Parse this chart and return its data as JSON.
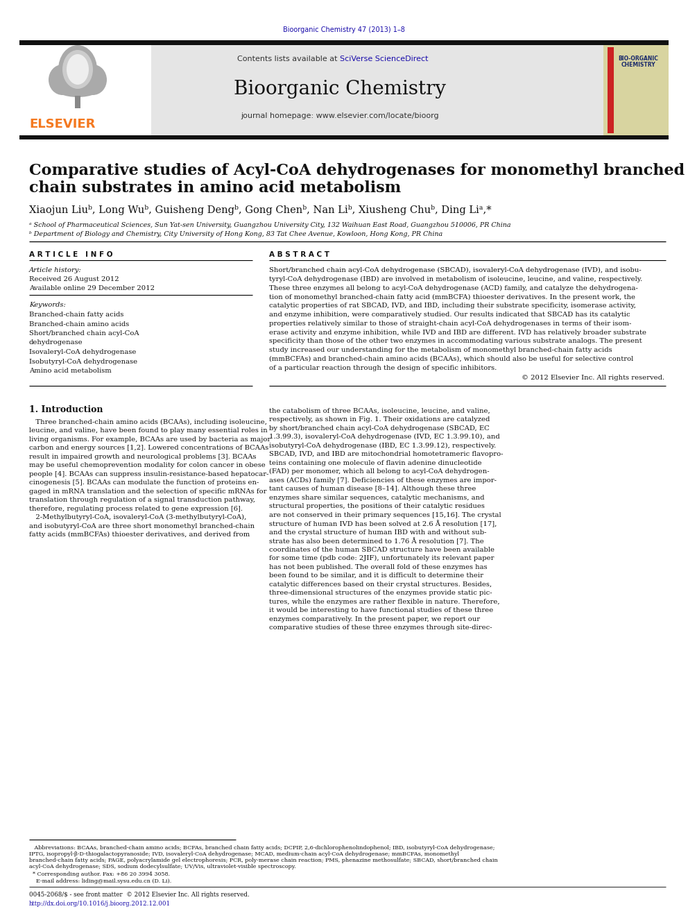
{
  "page_bg": "#ffffff",
  "header_citation": "Bioorganic Chemistry 47 (2013) 1–8",
  "header_citation_color": "#1a0dab",
  "journal_name": "Bioorganic Chemistry",
  "journal_homepage": "journal homepage: www.elsevier.com/locate/bioorg",
  "contents_text_pre": "Contents lists available at ",
  "contents_text_link": "SciVerse ScienceDirect",
  "article_title_line1": "Comparative studies of Acyl-CoA dehydrogenases for monomethyl branched",
  "article_title_line2": "chain substrates in amino acid metabolism",
  "authors_text": "Xiaojun Liuᵇ, Long Wuᵇ, Guisheng Dengᵇ, Gong Chenᵇ, Nan Liᵇ, Xiusheng Chuᵇ, Ding Liᵃ,*",
  "affiliation_a": "ᵃ School of Pharmaceutical Sciences, Sun Yat-sen University, Guangzhou University City, 132 Waihuan East Road, Guangzhou 510006, PR China",
  "affiliation_b": "ᵇ Department of Biology and Chemistry, City University of Hong Kong, 83 Tat Chee Avenue, Kowloon, Hong Kong, PR China",
  "article_info_title": "A R T I C L E   I N F O",
  "article_history_title": "Article history:",
  "received": "Received 26 August 2012",
  "available": "Available online 29 December 2012",
  "keywords_title": "Keywords:",
  "keywords": [
    "Branched-chain fatty acids",
    "Branched-chain amino acids",
    "Short/branched chain acyl-CoA",
    "dehydrogenase",
    "Isovaleryl-CoA dehydrogenase",
    "Isobutyryl-CoA dehydrogenase",
    "Amino acid metabolism"
  ],
  "abstract_title": "A B S T R A C T",
  "abstract_lines": [
    "Short/branched chain acyl-CoA dehydrogenase (SBCAD), isovaleryl-CoA dehydrogenase (IVD), and isobu-",
    "tyryl-CoA dehydrogenase (IBD) are involved in metabolism of isoleucine, leucine, and valine, respectively.",
    "These three enzymes all belong to acyl-CoA dehydrogenase (ACD) family, and catalyze the dehydrogena-",
    "tion of monomethyl branched-chain fatty acid (mmBCFA) thioester derivatives. In the present work, the",
    "catalytic properties of rat SBCAD, IVD, and IBD, including their substrate specificity, isomerase activity,",
    "and enzyme inhibition, were comparatively studied. Our results indicated that SBCAD has its catalytic",
    "properties relatively similar to those of straight-chain acyl-CoA dehydrogenases in terms of their isom-",
    "erase activity and enzyme inhibition, while IVD and IBD are different. IVD has relatively broader substrate",
    "specificity than those of the other two enzymes in accommodating various substrate analogs. The present",
    "study increased our understanding for the metabolism of monomethyl branched-chain fatty acids",
    "(mmBCFAs) and branched-chain amino acids (BCAAs), which should also be useful for selective control",
    "of a particular reaction through the design of specific inhibitors."
  ],
  "copyright": "© 2012 Elsevier Inc. All rights reserved.",
  "intro_title": "1. Introduction",
  "intro_col1_lines": [
    "   Three branched-chain amino acids (BCAAs), including isoleucine,",
    "leucine, and valine, have been found to play many essential roles in",
    "living organisms. For example, BCAAs are used by bacteria as major",
    "carbon and energy sources [1,2]. Lowered concentrations of BCAAs",
    "result in impaired growth and neurological problems [3]. BCAAs",
    "may be useful chemoprevention modality for colon cancer in obese",
    "people [4]. BCAAs can suppress insulin-resistance-based hepatocar-",
    "cinogenesis [5]. BCAAs can modulate the function of proteins en-",
    "gaged in mRNA translation and the selection of specific mRNAs for",
    "translation through regulation of a signal transduction pathway,",
    "therefore, regulating process related to gene expression [6].",
    "   2-Methylbutyryl-CoA, isovaleryl-CoA (3-methylbutyryl-CoA),",
    "and isobutyryl-CoA are three short monomethyl branched-chain",
    "fatty acids (mmBCFAs) thioester derivatives, and derived from"
  ],
  "intro_col2_lines": [
    "the catabolism of three BCAAs, isoleucine, leucine, and valine,",
    "respectively, as shown in Fig. 1. Their oxidations are catalyzed",
    "by short/branched chain acyl-CoA dehydrogenase (SBCAD, EC",
    "1.3.99.3), isovaleryl-CoA dehydrogenase (IVD, EC 1.3.99.10), and",
    "isobutyryl-CoA dehydrogenase (IBD, EC 1.3.99.12), respectively.",
    "SBCAD, IVD, and IBD are mitochondrial homotetrameric flavopro-",
    "teins containing one molecule of flavin adenine dinucleotide",
    "(FAD) per monomer, which all belong to acyl-CoA dehydrogen-",
    "ases (ACDs) family [7]. Deficiencies of these enzymes are impor-",
    "tant causes of human disease [8–14]. Although these three",
    "enzymes share similar sequences, catalytic mechanisms, and",
    "structural properties, the positions of their catalytic residues",
    "are not conserved in their primary sequences [15,16]. The crystal",
    "structure of human IVD has been solved at 2.6 Å resolution [17],",
    "and the crystal structure of human IBD with and without sub-",
    "strate has also been determined to 1.76 Å resolution [7]. The",
    "coordinates of the human SBCAD structure have been available",
    "for some time (pdb code: 2JIF), unfortunately its relevant paper",
    "has not been published. The overall fold of these enzymes has",
    "been found to be similar, and it is difficult to determine their",
    "catalytic differences based on their crystal structures. Besides,",
    "three-dimensional structures of the enzymes provide static pic-",
    "tures, while the enzymes are rather flexible in nature. Therefore,",
    "it would be interesting to have functional studies of these three",
    "enzymes comparatively. In the present paper, we report our",
    "comparative studies of these three enzymes through site-direc-"
  ],
  "footnote_lines": [
    "   Abbreviations: BCAAs, branched-chain amino acids; BCFAs, branched chain fatty acids; DCPIP, 2,6-dichlorophenolindophenol; IBD, isobutyryl-CoA dehydrogenase;",
    "IPTG, isopropyl-β-D-thiogalactopyranoside; IVD, isovaleryl-CoA dehydrogenase; MCAD, medium-chain acyl-CoA dehydrogenase; mmBCFAs, monomethyl",
    "branched-chain fatty acids; PAGE, polyacrylamide gel electrophoresis; PCR, poly-merase chain reaction; PMS, phenazine methosulfate; SBCAD, short/branched chain",
    "acyl-CoA dehydrogenase; SDS, sodium dodecylsulfate; UV/Vis, ultraviolet-visible spectroscopy."
  ],
  "footnote_corresponding": "  * Corresponding author. Fax: +86 20 3994 3058.",
  "footnote_email": "    E-mail address: liding@mail.sysu.edu.cn (D. Li).",
  "issn_line": "0045-2068/$ - see front matter  © 2012 Elsevier Inc. All rights reserved.",
  "doi_line": "http://dx.doi.org/10.1016/j.bioorg.2012.12.001",
  "elsevier_orange": "#f47920",
  "link_blue": "#1a0dab",
  "dark_bar_color": "#111111",
  "header_bg": "#e5e5e5",
  "cover_bg": "#d8d4a0"
}
